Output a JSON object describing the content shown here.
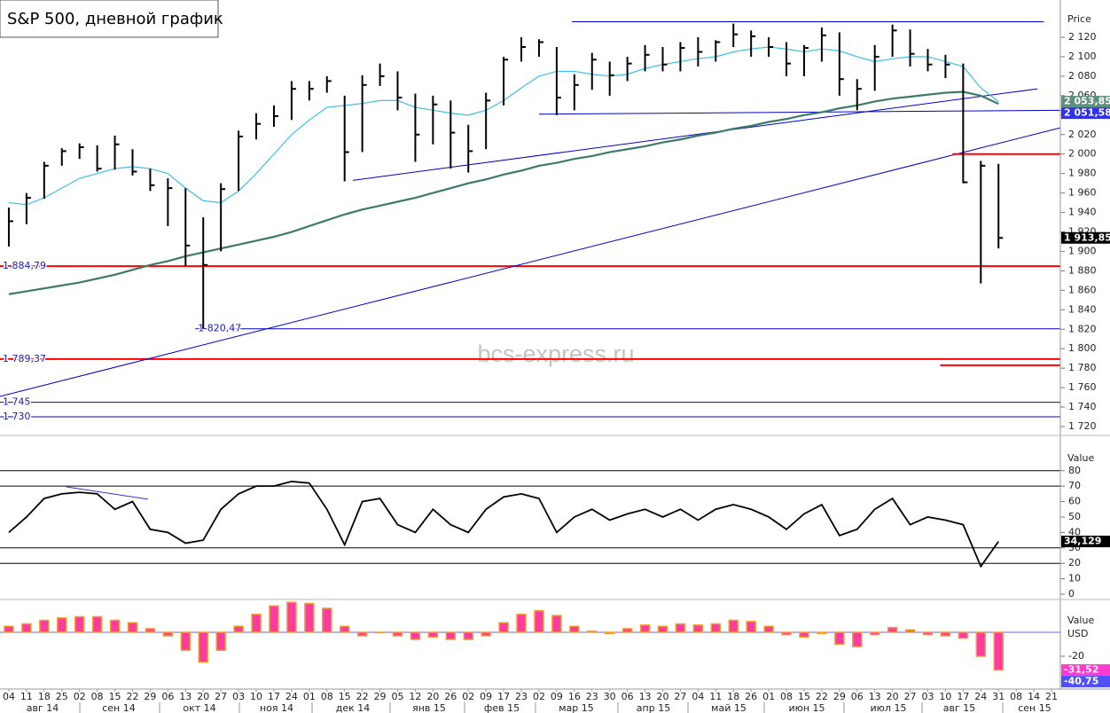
{
  "title": "S&P 500, дневной график",
  "watermark": "bcs-express.ru",
  "chart_data": [
    {
      "type": "hlc",
      "y_axis_title": "Price",
      "color": "#000000",
      "ylim": [
        1711.8,
        2158.3
      ],
      "yticks": [
        {
          "value": 2120,
          "label": "2 120"
        },
        {
          "value": 2100,
          "label": "2 100"
        },
        {
          "value": 2080,
          "label": "2 080"
        },
        {
          "value": 2060,
          "label": "2 060"
        },
        {
          "value": 2040,
          "label": "2 040"
        },
        {
          "value": 2020,
          "label": "2 020"
        },
        {
          "value": 2000,
          "label": "2 000"
        },
        {
          "value": 1980,
          "label": "1 980"
        },
        {
          "value": 1960,
          "label": "1 960"
        },
        {
          "value": 1940,
          "label": "1 940"
        },
        {
          "value": 1920,
          "label": "1 920"
        },
        {
          "value": 1900,
          "label": "1 900"
        },
        {
          "value": 1880,
          "label": "1 880"
        },
        {
          "value": 1860,
          "label": "1 860"
        },
        {
          "value": 1840,
          "label": "1 840"
        },
        {
          "value": 1820,
          "label": "1 820"
        },
        {
          "value": 1800,
          "label": "1 800"
        },
        {
          "value": 1780,
          "label": "1 780"
        },
        {
          "value": 1760,
          "label": "1 760"
        },
        {
          "value": 1740,
          "label": "1 740"
        },
        {
          "value": 1720,
          "label": "1 720"
        }
      ],
      "high": [
        1945,
        1960,
        1992,
        2006,
        2011,
        2009,
        2019,
        2005,
        1985,
        1975,
        1965,
        1935,
        1970,
        2024,
        2042,
        2050,
        2075,
        2075,
        2080,
        2060,
        2081,
        2093,
        2085,
        2062,
        2060,
        2055,
        2030,
        2063,
        2100,
        2120,
        2118,
        2110,
        2082,
        2104,
        2095,
        2100,
        2112,
        2110,
        2115,
        2120,
        2117,
        2134,
        2127,
        2120,
        2115,
        2112,
        2130,
        2125,
        2077,
        2112,
        2133,
        2128,
        2108,
        2102,
        2093,
        1993,
        1990,
        null,
        null,
        null
      ],
      "low": [
        1905,
        1928,
        1954,
        1988,
        1995,
        1982,
        1984,
        1978,
        1962,
        1926,
        1885,
        1820.47,
        1900,
        1962,
        2015,
        2028,
        2035,
        2055,
        2063,
        1972,
        2002,
        2070,
        2045,
        1992,
        2010,
        1985,
        1981,
        2005,
        2050,
        2095,
        2100,
        2040,
        2045,
        2066,
        2060,
        2075,
        2085,
        2085,
        2085,
        2090,
        2095,
        2110,
        2100,
        2100,
        2080,
        2080,
        2095,
        2060,
        2045,
        2065,
        2100,
        2090,
        2085,
        2078,
        1970,
        1867,
        1903,
        null,
        null,
        null
      ],
      "close": [
        1931,
        1955,
        1988,
        2003,
        2007,
        1985,
        2010,
        1982,
        1968,
        1965,
        1906,
        1886,
        1964,
        2018,
        2031,
        2039,
        2067,
        2067,
        2075,
        2002,
        2071,
        2080,
        2058,
        2020,
        2051,
        2022,
        2003,
        2055,
        2097,
        2110,
        2115,
        2058,
        2071,
        2097,
        2081,
        2093,
        2102,
        2092,
        2109,
        2105,
        2115,
        2123,
        2121,
        2110,
        2093,
        2109,
        2122,
        2077,
        2067,
        2100,
        2127,
        2103,
        2092,
        2092,
        1971,
        1988,
        1913.85,
        null,
        null,
        null
      ],
      "series": [
        {
          "color": "#3cc0e0",
          "values": [
            1950,
            1948,
            1955,
            1965,
            1975,
            1980,
            1985,
            1987,
            1985,
            1980,
            1965,
            1952,
            1950,
            1962,
            1980,
            2000,
            2020,
            2035,
            2048,
            2050,
            2052,
            2055,
            2055,
            2048,
            2045,
            2042,
            2040,
            2045,
            2055,
            2068,
            2080,
            2085,
            2085,
            2082,
            2080,
            2082,
            2088,
            2092,
            2095,
            2098,
            2100,
            2105,
            2108,
            2110,
            2108,
            2105,
            2108,
            2106,
            2100,
            2095,
            2098,
            2100,
            2100,
            2095,
            2090,
            2068,
            2053.85,
            null,
            null,
            null
          ]
        },
        {
          "color": "#3d7a68",
          "values": [
            1856,
            1859,
            1862,
            1865,
            1868,
            1872,
            1876,
            1881,
            1886,
            1890,
            1895,
            1899,
            1903,
            1907,
            1911,
            1915,
            1920,
            1926,
            1932,
            1938,
            1943,
            1947,
            1951,
            1955,
            1960,
            1965,
            1970,
            1974,
            1979,
            1983,
            1988,
            1991,
            1995,
            1998,
            2002,
            2005,
            2008,
            2012,
            2015,
            2019,
            2022,
            2026,
            2029,
            2033,
            2036,
            2040,
            2043,
            2047,
            2050,
            2054,
            2057,
            2059,
            2061,
            2063,
            2064,
            2060,
            2051.58,
            null,
            null,
            null
          ]
        }
      ],
      "levels": [
        {
          "value": 1884.79,
          "label": "1 884,79",
          "color": "#ff0000",
          "x": [
            -0.5,
            59.5
          ]
        },
        {
          "value": 1820.47,
          "label": "1 820,47",
          "color": "#0000cc",
          "x": [
            10.55,
            59.5
          ]
        },
        {
          "value": 1789.37,
          "label": "1 789,37",
          "color": "#ff0000",
          "x": [
            -0.5,
            59.5
          ]
        },
        {
          "value": 1745,
          "label": "1 745",
          "color": "#0000cc",
          "x": [
            -0.5,
            59.5
          ]
        },
        {
          "value": 1730,
          "label": "1 730",
          "color": "#0000cc",
          "x": [
            -0.5,
            59.5
          ]
        }
      ],
      "trendlines": [
        {
          "color": "#0000cc",
          "x": [
            31.86,
            58.56
          ],
          "y": [
            2136,
            2136
          ]
        },
        {
          "color": "#0000cc",
          "x": [
            30,
            59.5
          ],
          "y": [
            2041,
            2045
          ]
        },
        {
          "color": "#0000cc",
          "x": [
            19.47,
            58.2
          ],
          "y": [
            1973,
            2067
          ]
        },
        {
          "color": "#0000cc",
          "x": [
            -0.5,
            59.5
          ],
          "y": [
            1751,
            2027
          ]
        },
        {
          "color": "#ff0000",
          "x": [
            53.4,
            59.5
          ],
          "y": [
            2000,
            2000
          ]
        },
        {
          "color": "#ff0000",
          "x": [
            52.7,
            59.5
          ],
          "y": [
            1783,
            1783
          ]
        }
      ],
      "value_tags": [
        {
          "value": 2053.85,
          "label": "2 053,85",
          "color": "#5b8f80"
        },
        {
          "value": 2051.58,
          "label": "2 051,58",
          "color": "#3030f0"
        },
        {
          "value": 1913.85,
          "label": "1 913,85",
          "color": "#000000"
        }
      ]
    },
    {
      "type": "line",
      "y_axis_title": "Value",
      "color": "#000000",
      "ylim": [
        0,
        94.8
      ],
      "yticks": [
        80,
        70,
        60,
        50,
        40,
        30,
        20,
        10,
        0
      ],
      "levels": [
        80,
        70,
        30,
        20
      ],
      "values": [
        40,
        50,
        62,
        65,
        66,
        65,
        55,
        60,
        42,
        40,
        33,
        35,
        55,
        65,
        70,
        70,
        73,
        72,
        55,
        32,
        60,
        62,
        45,
        40,
        55,
        45,
        40,
        55,
        63,
        65,
        62,
        40,
        50,
        55,
        48,
        52,
        55,
        50,
        55,
        48,
        55,
        58,
        55,
        50,
        42,
        52,
        58,
        38,
        42,
        55,
        62,
        45,
        50,
        48,
        45,
        18,
        34.129,
        null,
        null,
        null
      ],
      "trendlines": [
        {
          "color": "#3333cc",
          "x": [
            3.26,
            7.88
          ],
          "y": [
            69.5,
            61.5
          ]
        }
      ],
      "value_tags": [
        {
          "value": 34.129,
          "label": "34,129",
          "color": "#000000"
        }
      ]
    },
    {
      "type": "bar",
      "y_axis_title": "Value",
      "y_axis_unit": "USD",
      "color": "#ff3ba0",
      "stroke_color": "#f0a030",
      "ylim": [
        -45.9,
        24.4
      ],
      "yticks": [
        -20
      ],
      "values": [
        5,
        7,
        10,
        12,
        13,
        13,
        10,
        8,
        3,
        -3,
        -15,
        -25,
        -15,
        5,
        15,
        22,
        25,
        24,
        20,
        5,
        -3,
        0,
        -3,
        -6,
        -4,
        -6,
        -6,
        -3,
        8,
        15,
        18,
        14,
        5,
        1,
        -1,
        3,
        6,
        5,
        7,
        6,
        7,
        10,
        9,
        5,
        -2,
        -4,
        -1,
        -10,
        -12,
        -2,
        4,
        2,
        -2,
        -3,
        -5,
        -20,
        -31.52,
        null,
        null,
        null
      ],
      "value_tags": [
        {
          "value": -31.52,
          "label": "-31,52",
          "color": "#ff3ad0"
        },
        {
          "value": -40.75,
          "label": "-40,75",
          "color": "#5050ff"
        }
      ],
      "categories": [
        "04",
        "11",
        "18",
        "25",
        "02",
        "08",
        "15",
        "22",
        "29",
        "06",
        "13",
        "20",
        "27",
        "03",
        "10",
        "17",
        "24",
        "01",
        "08",
        "15",
        "22",
        "29",
        "05",
        "12",
        "20",
        "26",
        "02",
        "09",
        "17",
        "23",
        "02",
        "09",
        "16",
        "23",
        "30",
        "06",
        "13",
        "20",
        "27",
        "04",
        "11",
        "18",
        "26",
        "01",
        "08",
        "15",
        "22",
        "29",
        "06",
        "13",
        "20",
        "27",
        "03",
        "10",
        "17",
        "24",
        "31",
        "08",
        "14",
        "21"
      ],
      "months": [
        "авг 14",
        "сен 14",
        "окт 14",
        "ноя 14",
        "дек 14",
        "янв 15",
        "фев 15",
        "мар 15",
        "апр 15",
        "май 15",
        "июн 15",
        "июл 15",
        "авг 15",
        "сен 15"
      ]
    }
  ]
}
